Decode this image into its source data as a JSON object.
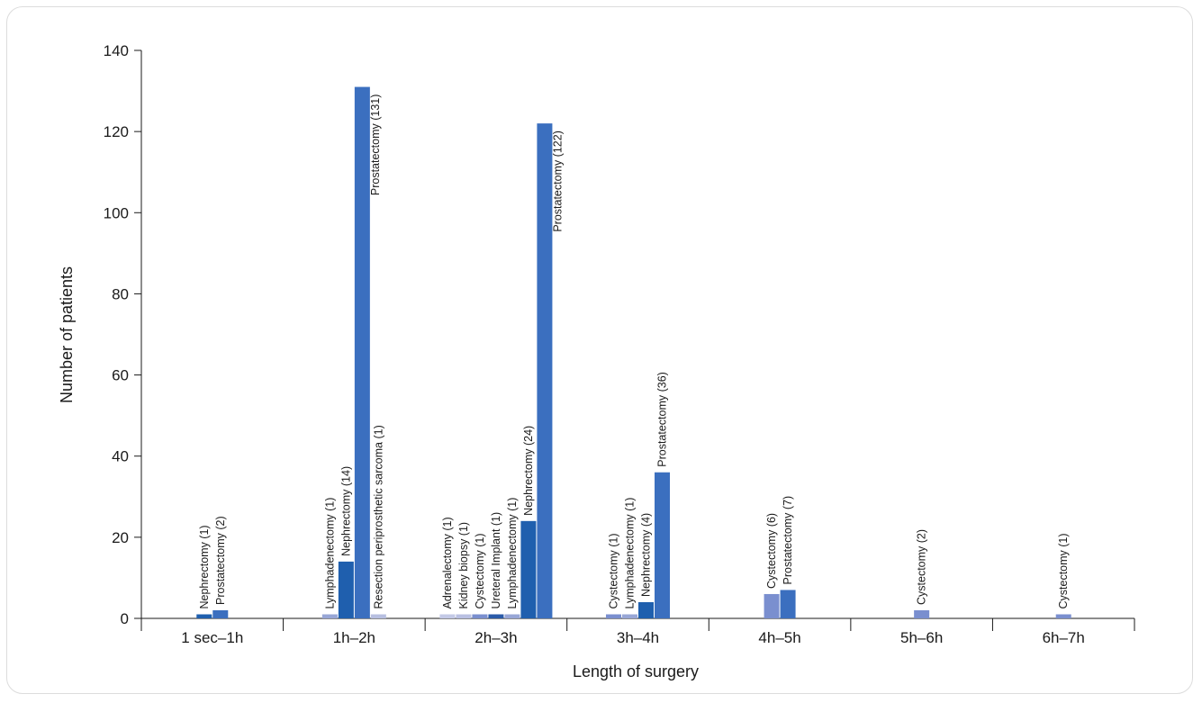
{
  "chart_data": {
    "type": "bar",
    "title": "",
    "xlabel": "Length of surgery",
    "ylabel": "Number of patients",
    "ylim": [
      0,
      140
    ],
    "yticks": [
      0,
      20,
      40,
      60,
      80,
      100,
      120,
      140
    ],
    "grid": false,
    "categories": [
      "1 sec–1h",
      "1h–2h",
      "2h–3h",
      "3h–4h",
      "4h–5h",
      "5h–6h",
      "6h–7h"
    ],
    "colors": {
      "Nephrectomy": "#1f5fae",
      "Prostatectomy": "#3b6fbf",
      "Lymphadenectomy": "#98a6d6",
      "Resection periprosthetic sarcoma": "#b7bfe0",
      "Adrenalectomy": "#c3c9e6",
      "Kidney biopsy": "#b9c0e2",
      "Cystectomy": "#7a8fcf",
      "Ureteral Implant": "#2a5aa8"
    },
    "groups": [
      {
        "category": "1 sec–1h",
        "bars": [
          {
            "procedure": "Nephrectomy",
            "value": 1,
            "label": "Nephrectomy (1)"
          },
          {
            "procedure": "Prostatectomy",
            "value": 2,
            "label": "Prostatectomy (2)"
          }
        ]
      },
      {
        "category": "1h–2h",
        "bars": [
          {
            "procedure": "Lymphadenectomy",
            "value": 1,
            "label": "Lymphadenectomy (1)"
          },
          {
            "procedure": "Nephrectomy",
            "value": 14,
            "label": "Nephrectomy (14)"
          },
          {
            "procedure": "Prostatectomy",
            "value": 131,
            "label": "Prostatectomy (131)"
          },
          {
            "procedure": "Resection periprosthetic sarcoma",
            "value": 1,
            "label": "Resection periprosthetic sarcoma (1)"
          }
        ]
      },
      {
        "category": "2h–3h",
        "bars": [
          {
            "procedure": "Adrenalectomy",
            "value": 1,
            "label": "Adrenalectomy (1)"
          },
          {
            "procedure": "Kidney biopsy",
            "value": 1,
            "label": "Kidney biopsy (1)"
          },
          {
            "procedure": "Cystectomy",
            "value": 1,
            "label": "Cystectomy (1)"
          },
          {
            "procedure": "Ureteral Implant",
            "value": 1,
            "label": "Ureteral Implant (1)"
          },
          {
            "procedure": "Lymphadenectomy",
            "value": 1,
            "label": "Lymphadenectomy (1)"
          },
          {
            "procedure": "Nephrectomy",
            "value": 24,
            "label": "Nephrectomy (24)"
          },
          {
            "procedure": "Prostatectomy",
            "value": 122,
            "label": "Prostatectomy (122)"
          }
        ]
      },
      {
        "category": "3h–4h",
        "bars": [
          {
            "procedure": "Cystectomy",
            "value": 1,
            "label": "Cystectomy (1)"
          },
          {
            "procedure": "Lymphadenectomy",
            "value": 1,
            "label": "Lymphadenectomy (1)"
          },
          {
            "procedure": "Nephrectomy",
            "value": 4,
            "label": "Nephrectomy (4)"
          },
          {
            "procedure": "Prostatectomy",
            "value": 36,
            "label": "Prostatectomy (36)"
          }
        ]
      },
      {
        "category": "4h–5h",
        "bars": [
          {
            "procedure": "Cystectomy",
            "value": 6,
            "label": "Cystectomy (6)"
          },
          {
            "procedure": "Prostatectomy",
            "value": 7,
            "label": "Prostatectomy (7)"
          }
        ]
      },
      {
        "category": "5h–6h",
        "bars": [
          {
            "procedure": "Cystectomy",
            "value": 2,
            "label": "Cystectomy (2)"
          }
        ]
      },
      {
        "category": "6h–7h",
        "bars": [
          {
            "procedure": "Cystectomy",
            "value": 1,
            "label": "Cystectomy (1)"
          }
        ]
      }
    ]
  }
}
